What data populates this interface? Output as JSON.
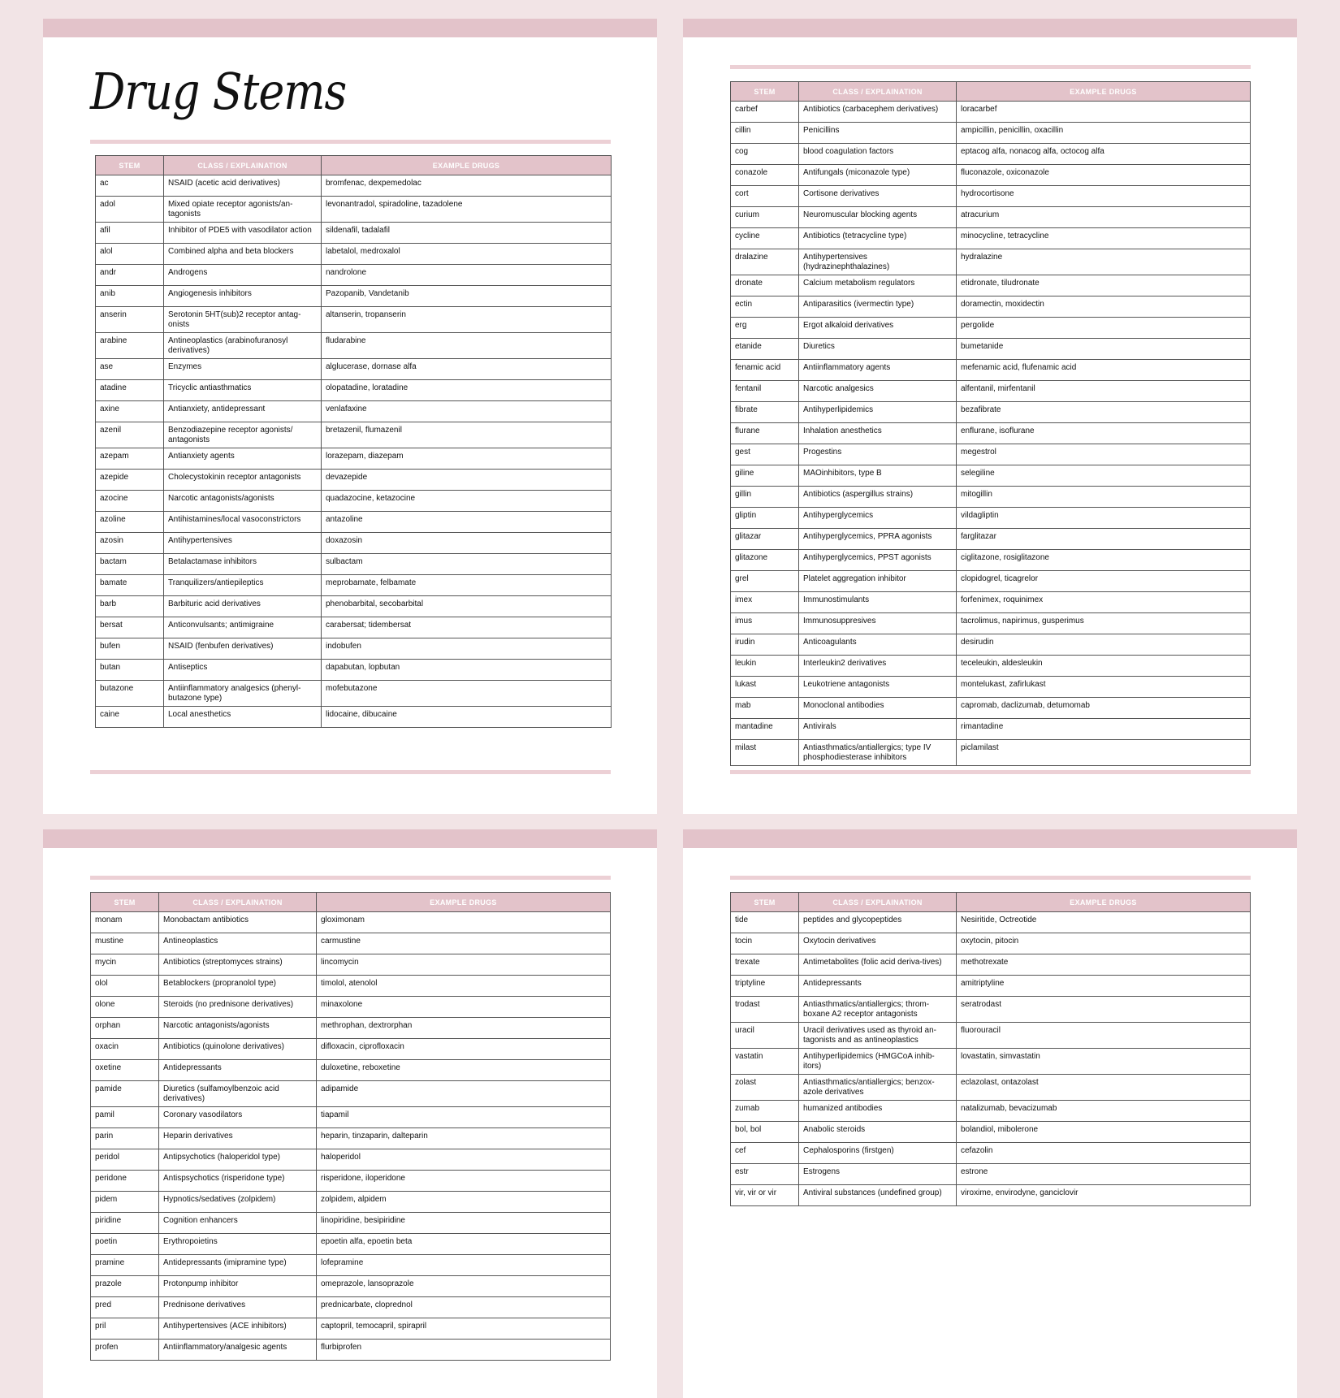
{
  "title": "Drug Stems",
  "headers": [
    "STEM",
    "CLASS / EXPLAINATION",
    "EXAMPLE DRUGS"
  ],
  "colors": {
    "background": "#f2e4e6",
    "accent": "#e3c3ca",
    "rule": "#ecd0d5"
  },
  "pages": [
    {
      "rows": [
        [
          "ac",
          "NSAID (acetic acid derivatives)",
          "bromfenac, dexpemedolac"
        ],
        [
          "adol",
          "Mixed opiate receptor agonists/an-tagonists",
          "levonantradol, spiradoline, tazadolene"
        ],
        [
          "afil",
          "Inhibitor of PDE5 with vasodilator action",
          "sildenafil, tadalafil"
        ],
        [
          "alol",
          "Combined alpha and beta blockers",
          "labetalol, medroxalol"
        ],
        [
          "andr",
          "Androgens",
          "nandrolone"
        ],
        [
          "anib",
          "Angiogenesis inhibitors",
          "Pazopanib, Vandetanib"
        ],
        [
          "anserin",
          "Serotonin 5HT(sub)2 receptor antag-onists",
          "altanserin, tropanserin"
        ],
        [
          "arabine",
          "Antineoplastics (arabinofuranosyl derivatives)",
          "fludarabine"
        ],
        [
          "ase",
          "Enzymes",
          "alglucerase, dornase alfa"
        ],
        [
          "atadine",
          "Tricyclic antiasthmatics",
          "olopatadine, loratadine"
        ],
        [
          "axine",
          "Antianxiety, antidepressant",
          "venlafaxine"
        ],
        [
          "azenil",
          "Benzodiazepine receptor agonists/ antagonists",
          "bretazenil, flumazenil"
        ],
        [
          "azepam",
          "Antianxiety agents",
          "lorazepam, diazepam"
        ],
        [
          "azepide",
          "Cholecystokinin receptor antagonists",
          "devazepide"
        ],
        [
          "azocine",
          "Narcotic antagonists/agonists",
          "quadazocine, ketazocine"
        ],
        [
          "azoline",
          "Antihistamines/local vasoconstrictors",
          "antazoline"
        ],
        [
          "azosin",
          "Antihypertensives",
          "doxazosin"
        ],
        [
          "bactam",
          "Betalactamase inhibitors",
          "sulbactam"
        ],
        [
          "bamate",
          "Tranquilizers/antiepileptics",
          "meprobamate, felbamate"
        ],
        [
          "barb",
          "Barbituric acid derivatives",
          "phenobarbital, secobarbital"
        ],
        [
          "bersat",
          "Anticonvulsants; antimigraine",
          "carabersat; tidembersat"
        ],
        [
          "bufen",
          "NSAID (fenbufen derivatives)",
          "indobufen"
        ],
        [
          "butan",
          "Antiseptics",
          "dapabutan, lopbutan"
        ],
        [
          "butazone",
          "Antiinflammatory analgesics (phenyl-butazone type)",
          "mofebutazone"
        ],
        [
          "caine",
          "Local anesthetics",
          "lidocaine, dibucaine"
        ]
      ]
    },
    {
      "rows": [
        [
          "carbef",
          "Antibiotics (carbacephem derivatives)",
          "loracarbef"
        ],
        [
          "cillin",
          "Penicillins",
          "ampicillin, penicillin, oxacillin"
        ],
        [
          "cog",
          "blood coagulation factors",
          "eptacog alfa, nonacog alfa, octocog alfa"
        ],
        [
          "conazole",
          "Antifungals (miconazole type)",
          "fluconazole, oxiconazole"
        ],
        [
          "cort",
          "Cortisone derivatives",
          "hydrocortisone"
        ],
        [
          "curium",
          "Neuromuscular blocking agents",
          "atracurium"
        ],
        [
          "cycline",
          "Antibiotics (tetracycline type)",
          "minocycline, tetracycline"
        ],
        [
          "dralazine",
          "Antihypertensives (hydrazinephthalazines)",
          "hydralazine"
        ],
        [
          "dronate",
          "Calcium metabolism regulators",
          "etidronate, tiludronate"
        ],
        [
          "ectin",
          "Antiparasitics (ivermectin type)",
          "doramectin, moxidectin"
        ],
        [
          "erg",
          "Ergot alkaloid derivatives",
          "pergolide"
        ],
        [
          "etanide",
          "Diuretics",
          "bumetanide"
        ],
        [
          "fenamic acid",
          "Antiinflammatory agents",
          "mefenamic acid, flufenamic acid"
        ],
        [
          "fentanil",
          "Narcotic analgesics",
          "alfentanil, mirfentanil"
        ],
        [
          "fibrate",
          "Antihyperlipidemics",
          "bezafibrate"
        ],
        [
          "flurane",
          "Inhalation anesthetics",
          "enflurane, isoflurane"
        ],
        [
          "gest",
          "Progestins",
          "megestrol"
        ],
        [
          "giline",
          "MAOinhibitors, type B",
          "selegiline"
        ],
        [
          "gillin",
          "Antibiotics (aspergillus strains)",
          "mitogillin"
        ],
        [
          "gliptin",
          "Antihyperglycemics",
          "vildagliptin"
        ],
        [
          "glitazar",
          "Antihyperglycemics, PPRA agonists",
          "farglitazar"
        ],
        [
          "glitazone",
          "Antihyperglycemics, PPST agonists",
          "ciglitazone, rosiglitazone"
        ],
        [
          "grel",
          "Platelet aggregation inhibitor",
          "clopidogrel, ticagrelor"
        ],
        [
          "imex",
          "Immunostimulants",
          "forfenimex, roquinimex"
        ],
        [
          "imus",
          "Immunosuppresives",
          "tacrolimus, napirimus, gusperimus"
        ],
        [
          "irudin",
          "Anticoagulants",
          "desirudin"
        ],
        [
          "leukin",
          "Interleukin2 derivatives",
          "teceleukin, aldesleukin"
        ],
        [
          "lukast",
          "Leukotriene antagonists",
          "montelukast, zafirlukast"
        ],
        [
          "mab",
          "Monoclonal antibodies",
          "capromab, daclizumab, detumomab"
        ],
        [
          "mantadine",
          "Antivirals",
          "rimantadine"
        ],
        [
          "milast",
          "Antiasthmatics/antiallergics; type IV phosphodiesterase inhibitors",
          "piclamilast"
        ]
      ]
    },
    {
      "rows": [
        [
          "monam",
          "Monobactam antibiotics",
          "gloximonam"
        ],
        [
          "mustine",
          "Antineoplastics",
          "carmustine"
        ],
        [
          "mycin",
          "Antibiotics (streptomyces strains)",
          "lincomycin"
        ],
        [
          "olol",
          "Betablockers (propranolol type)",
          "timolol, atenolol"
        ],
        [
          "olone",
          "Steroids (no prednisone derivatives)",
          "minaxolone"
        ],
        [
          "orphan",
          "Narcotic antagonists/agonists",
          "methrophan, dextrorphan"
        ],
        [
          "oxacin",
          "Antibiotics (quinolone derivatives)",
          "difloxacin, ciprofloxacin"
        ],
        [
          "oxetine",
          "Antidepressants",
          "duloxetine, reboxetine"
        ],
        [
          "pamide",
          "Diuretics (sulfamoylbenzoic acid derivatives)",
          "adipamide"
        ],
        [
          "pamil",
          "Coronary vasodilators",
          "tiapamil"
        ],
        [
          "parin",
          "Heparin derivatives",
          "heparin, tinzaparin, dalteparin"
        ],
        [
          "peridol",
          "Antipsychotics (haloperidol type)",
          "haloperidol"
        ],
        [
          "peridone",
          "Antispsychotics (risperidone type)",
          "risperidone, iloperidone"
        ],
        [
          "pidem",
          "Hypnotics/sedatives (zolpidem)",
          "zolpidem, alpidem"
        ],
        [
          "piridine",
          "Cognition enhancers",
          "linopiridine, besipiridine"
        ],
        [
          "poetin",
          "Erythropoietins",
          "epoetin alfa, epoetin beta"
        ],
        [
          "pramine",
          "Antidepressants (imipramine type)",
          "lofepramine"
        ],
        [
          "prazole",
          "Protonpump inhibitor",
          "omeprazole, lansoprazole"
        ],
        [
          "pred",
          "Prednisone derivatives",
          "prednicarbate, cloprednol"
        ],
        [
          "pril",
          "Antihypertensives (ACE inhibitors)",
          "captopril, temocapril, spirapril"
        ],
        [
          "profen",
          "Antiinflammatory/analgesic agents",
          "flurbiprofen"
        ]
      ]
    },
    {
      "rows": [
        [
          "tide",
          "peptides and glycopeptides",
          "Nesiritide, Octreotide"
        ],
        [
          "tocin",
          "Oxytocin derivatives",
          "oxytocin, pitocin"
        ],
        [
          "trexate",
          "Antimetabolites (folic acid deriva-tives)",
          "methotrexate"
        ],
        [
          "triptyline",
          "Antidepressants",
          "amitriptyline"
        ],
        [
          "trodast",
          "Antiasthmatics/antiallergics; throm-boxane A2 receptor antagonists",
          "seratrodast"
        ],
        [
          "uracil",
          "Uracil derivatives used as thyroid an-tagonists and as antineoplastics",
          "fluorouracil"
        ],
        [
          "vastatin",
          "Antihyperlipidemics (HMGCoA inhib-itors)",
          "lovastatin, simvastatin"
        ],
        [
          "zolast",
          "Antiasthmatics/antiallergics; benzox-azole derivatives",
          "eclazolast, ontazolast"
        ],
        [
          "zumab",
          "humanized antibodies",
          "natalizumab, bevacizumab"
        ],
        [
          "bol, bol",
          "Anabolic steroids",
          "bolandiol, mibolerone"
        ],
        [
          "cef",
          "Cephalosporins (firstgen)",
          "cefazolin"
        ],
        [
          "estr",
          "Estrogens",
          "estrone"
        ],
        [
          "vir, vir or vir",
          "Antiviral substances (undefined group)",
          "viroxime, envirodyne, ganciclovir"
        ]
      ]
    }
  ]
}
